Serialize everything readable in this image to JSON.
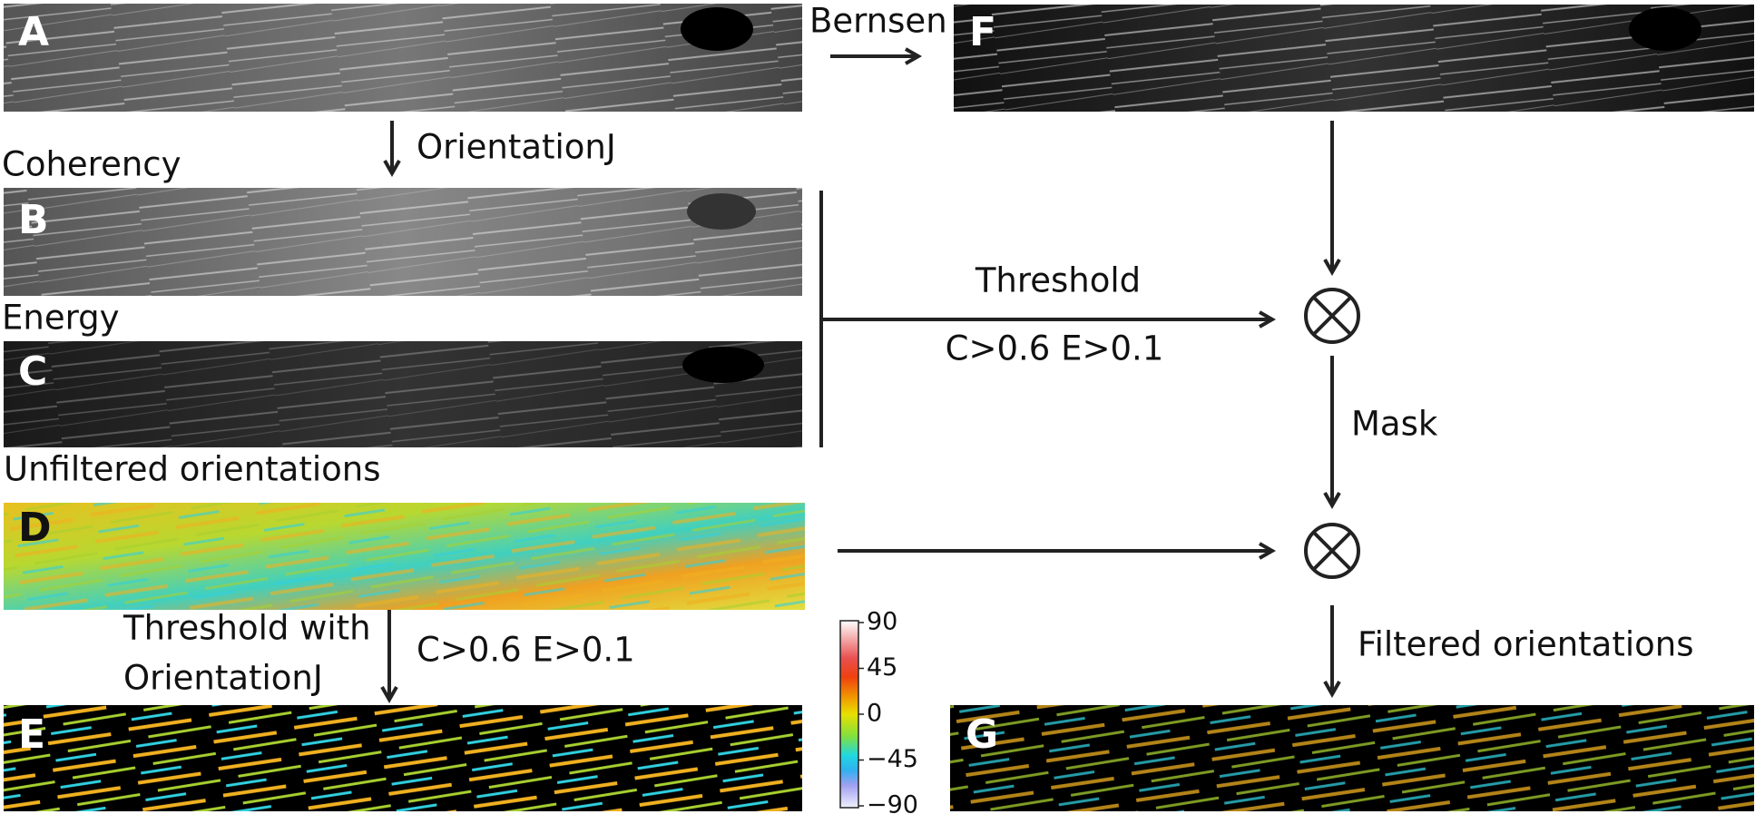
{
  "panels": {
    "A": "A",
    "B": "B",
    "C": "C",
    "D": "D",
    "E": "E",
    "F": "F",
    "G": "G"
  },
  "labels": {
    "bernsen": "Bernsen",
    "orientationj": "OrientationJ",
    "coherency": "Coherency",
    "energy": "Energy",
    "unfiltered": "Unfiltered orientations",
    "threshold": "Threshold",
    "threshold_condition": "C>0.6 E>0.1",
    "mask": "Mask",
    "filtered": "Filtered orientations",
    "threshold_with_1": "Threshold with",
    "threshold_with_2": "OrientationJ",
    "threshold_with_condition": "C>0.6 E>0.1"
  },
  "colorbar": {
    "ticks": [
      "90",
      "45",
      "0",
      "−45",
      "−90"
    ]
  }
}
